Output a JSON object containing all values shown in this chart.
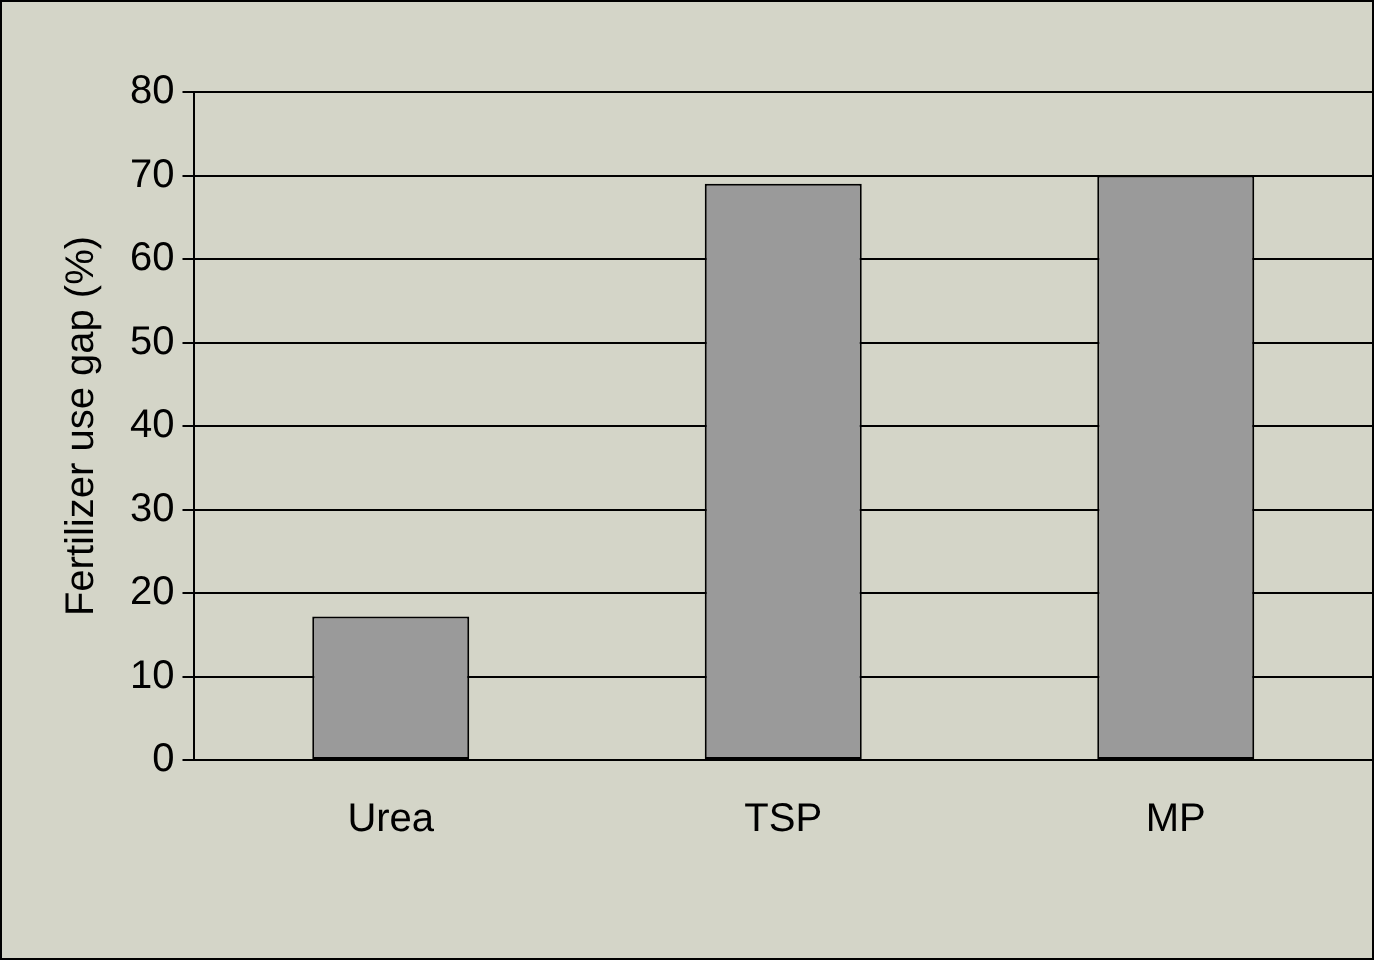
{
  "chart_data": {
    "type": "bar",
    "ylabel": "Fertilizer use gap (%)",
    "categories": [
      "Urea",
      "TSP",
      "MP"
    ],
    "values": [
      17.2,
      69,
      70
    ],
    "color": "#9a9a9a",
    "ylim": [
      0,
      80
    ],
    "yticks": [
      0,
      10,
      20,
      30,
      40,
      50,
      60,
      70,
      80
    ],
    "grid": "y",
    "legend": false
  }
}
